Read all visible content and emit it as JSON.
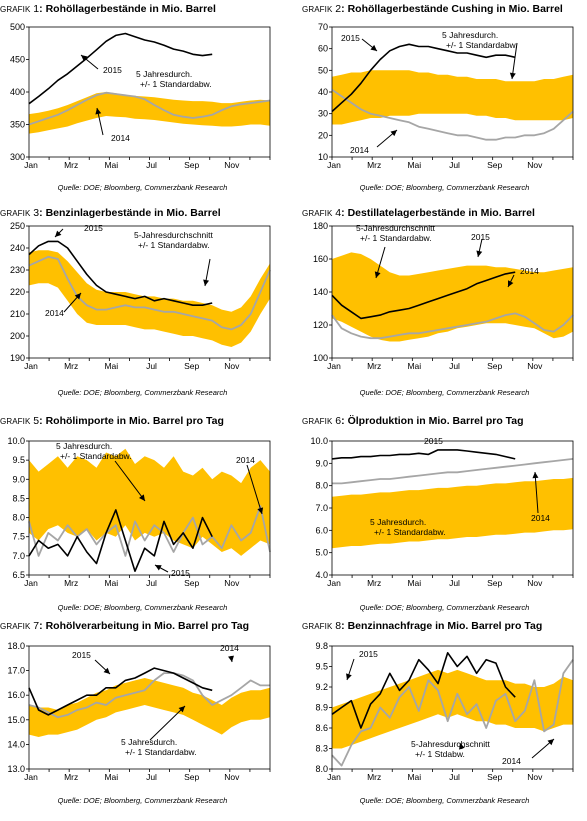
{
  "colors": {
    "band": "#FFC000",
    "series2015": "#000000",
    "series2014": "#A6A6A6",
    "frame": "#000000"
  },
  "source_text": "Quelle: DOE; Bloomberg, Commerzbank Research",
  "panels": [
    {
      "prefix": "GRAFIK",
      "number": "1",
      "title": ": Rohöllagerbestände in Mio. Barrel"
    },
    {
      "prefix": "GRAFIK",
      "number": "2",
      "title": ": Rohöllagerbestände Cushing in Mio. Barrel"
    },
    {
      "prefix": "GRAFIK",
      "number": "3",
      "title": ": Benzinlagerbestände in Mio. Barrel"
    },
    {
      "prefix": "GRAFIK",
      "number": "4",
      "title": ": Destillatelagerbestände in Mio. Barrel"
    },
    {
      "prefix": "GRAFIK",
      "number": "5",
      "title": ": Rohölimporte in Mio. Barrel pro Tag"
    },
    {
      "prefix": "GRAFIK",
      "number": "6",
      "title": ": Ölproduktion in Mio. Barrel pro Tag"
    },
    {
      "prefix": "GRAFIK",
      "number": "7",
      "title": ": Rohölverarbeitung in Mio. Barrel pro Tag"
    },
    {
      "prefix": "GRAFIK",
      "number": "8",
      "title": ": Benzinnachfrage in Mio. Barrel pro Tag"
    }
  ],
  "chart_data": [
    {
      "type": "area",
      "x_tick_labels": [
        "Jan",
        "Mrz",
        "Mai",
        "Jul",
        "Sep",
        "Nov"
      ],
      "ylim": [
        300,
        500
      ],
      "yticks": [
        "300",
        "350",
        "400",
        "450",
        "500"
      ],
      "annotations": [
        "2015",
        "5 Jahresdurch. +/- 1 Standardabw.",
        "2014"
      ],
      "band_upper": [
        366,
        368,
        371,
        375,
        380,
        386,
        392,
        398,
        400,
        398,
        395,
        394,
        393,
        392,
        390,
        388,
        387,
        386,
        386,
        385,
        383,
        383,
        385,
        387,
        388,
        387
      ],
      "band_lower": [
        336,
        338,
        341,
        344,
        347,
        352,
        356,
        360,
        363,
        362,
        361,
        359,
        358,
        357,
        355,
        353,
        351,
        350,
        349,
        348,
        347,
        347,
        348,
        350,
        350,
        348
      ],
      "series": [
        {
          "name": "2015",
          "values": [
            382,
            393,
            405,
            418,
            428,
            440,
            452,
            465,
            478,
            487,
            490,
            485,
            480,
            477,
            472,
            466,
            463,
            458,
            456,
            458
          ]
        },
        {
          "name": "2014",
          "values": [
            350,
            355,
            360,
            365,
            372,
            380,
            388,
            395,
            399,
            397,
            395,
            393,
            389,
            380,
            372,
            365,
            362,
            360,
            362,
            365,
            372,
            378,
            381,
            383,
            385,
            387
          ]
        }
      ]
    },
    {
      "type": "area",
      "x_tick_labels": [
        "Jan",
        "Mrz",
        "Mai",
        "Jul",
        "Sep",
        "Nov"
      ],
      "ylim": [
        10,
        70
      ],
      "yticks": [
        "10",
        "20",
        "30",
        "40",
        "50",
        "60",
        "70"
      ],
      "annotations": [
        "2015",
        "5 Jahresdurch. +/- 1 Standardabw.",
        "2014"
      ],
      "band_upper": [
        47,
        48,
        49,
        49,
        50,
        50,
        50,
        50,
        50,
        49,
        49,
        48,
        48,
        47,
        47,
        46,
        46,
        46,
        45,
        45,
        45,
        45,
        46,
        46,
        47,
        48
      ],
      "band_lower": [
        25,
        25,
        26,
        27,
        28,
        28,
        29,
        29,
        29,
        30,
        30,
        30,
        30,
        30,
        30,
        29,
        29,
        28,
        28,
        27,
        27,
        27,
        27,
        27,
        27,
        28
      ],
      "series": [
        {
          "name": "2015",
          "values": [
            31,
            35,
            39,
            44,
            50,
            55,
            59,
            61,
            62,
            61,
            61,
            60,
            59,
            58,
            58,
            57,
            56,
            57,
            57,
            56
          ]
        },
        {
          "name": "2014",
          "values": [
            41,
            38,
            35,
            32,
            30,
            29,
            28,
            27,
            26,
            24,
            23,
            22,
            21,
            20,
            20,
            19,
            18,
            18,
            19,
            19,
            20,
            20,
            21,
            23,
            27,
            31
          ]
        }
      ]
    },
    {
      "type": "area",
      "x_tick_labels": [
        "Jan",
        "Mrz",
        "Mai",
        "Jul",
        "Sep",
        "Nov"
      ],
      "ylim": [
        190,
        250
      ],
      "yticks": [
        "190",
        "200",
        "210",
        "220",
        "230",
        "240",
        "250"
      ],
      "annotations": [
        "2015",
        "5-Jahresdurchschnitt +/- 1 Standardabw.",
        "2014"
      ],
      "band_upper": [
        238,
        239,
        239,
        238,
        234,
        229,
        224,
        221,
        220,
        220,
        220,
        219,
        218,
        218,
        217,
        217,
        216,
        216,
        215,
        214,
        212,
        211,
        213,
        218,
        226,
        233
      ],
      "band_lower": [
        223,
        224,
        224,
        222,
        216,
        210,
        206,
        205,
        205,
        205,
        205,
        204,
        203,
        203,
        202,
        201,
        200,
        200,
        199,
        198,
        196,
        195,
        197,
        202,
        210,
        217
      ],
      "series": [
        {
          "name": "2015",
          "values": [
            237,
            241,
            243,
            243,
            240,
            234,
            228,
            223,
            220,
            219,
            218,
            217,
            218,
            216,
            217,
            216,
            215,
            214,
            214,
            215
          ]
        },
        {
          "name": "2014",
          "values": [
            232,
            234,
            236,
            235,
            226,
            218,
            214,
            212,
            212,
            213,
            214,
            213,
            213,
            212,
            211,
            211,
            210,
            209,
            208,
            207,
            204,
            203,
            205,
            210,
            220,
            230
          ]
        }
      ]
    },
    {
      "type": "area",
      "x_tick_labels": [
        "Jan",
        "Mrz",
        "Mai",
        "Jul",
        "Sep",
        "Nov"
      ],
      "ylim": [
        100,
        180
      ],
      "yticks": [
        "100",
        "120",
        "140",
        "160",
        "180"
      ],
      "annotations": [
        "5-Jahresdurchschnitt +/- 1 Standardabw.",
        "2015",
        "2014"
      ],
      "band_upper": [
        160,
        162,
        164,
        163,
        160,
        156,
        152,
        150,
        150,
        151,
        152,
        153,
        154,
        155,
        156,
        156,
        156,
        155,
        155,
        154,
        153,
        152,
        152,
        153,
        154,
        155
      ],
      "band_lower": [
        124,
        122,
        119,
        116,
        113,
        111,
        110,
        110,
        111,
        112,
        113,
        115,
        116,
        118,
        119,
        120,
        121,
        121,
        121,
        120,
        119,
        118,
        115,
        112,
        113,
        116
      ],
      "series": [
        {
          "name": "2015",
          "values": [
            138,
            132,
            128,
            124,
            125,
            126,
            128,
            129,
            130,
            132,
            134,
            136,
            138,
            140,
            142,
            145,
            147,
            149,
            151,
            152
          ]
        },
        {
          "name": "2014",
          "values": [
            126,
            118,
            115,
            113,
            112,
            112,
            113,
            114,
            115,
            115,
            116,
            117,
            118,
            119,
            120,
            121,
            122,
            124,
            126,
            127,
            125,
            121,
            117,
            116,
            120,
            126
          ]
        }
      ]
    },
    {
      "type": "area",
      "x_tick_labels": [
        "Jan",
        "Mrz",
        "Mai",
        "Jul",
        "Sep",
        "Nov"
      ],
      "ylim": [
        6.5,
        10.0
      ],
      "yticks": [
        "6.5",
        "7.0",
        "7.5",
        "8.0",
        "8.5",
        "9.0",
        "9.5",
        "10.0"
      ],
      "annotations": [
        "5 Jahresdurch. +/- 1 Standardabw.",
        "2014",
        "2015"
      ],
      "band_upper": [
        9.5,
        9.2,
        9.4,
        9.6,
        9.3,
        9.6,
        9.5,
        9.3,
        9.7,
        9.6,
        9.8,
        9.4,
        9.6,
        9.5,
        9.3,
        9.6,
        9.2,
        9.1,
        9.3,
        9.0,
        9.2,
        9.1,
        8.9,
        9.3,
        9.5,
        9.2
      ],
      "band_lower": [
        7.6,
        7.4,
        7.7,
        7.8,
        7.6,
        7.5,
        7.7,
        7.4,
        7.6,
        7.5,
        7.8,
        7.4,
        7.6,
        7.5,
        7.6,
        7.4,
        7.3,
        7.2,
        7.5,
        7.3,
        7.1,
        7.2,
        7.0,
        7.2,
        7.4,
        7.3
      ],
      "series": [
        {
          "name": "2015",
          "values": [
            7.0,
            7.4,
            7.2,
            7.3,
            7.0,
            7.5,
            7.1,
            6.8,
            7.6,
            8.2,
            7.4,
            6.6,
            7.2,
            7.0,
            7.9,
            7.3,
            7.6,
            7.2,
            8.0,
            7.5
          ]
        },
        {
          "name": "2014",
          "values": [
            7.9,
            7.0,
            7.6,
            7.4,
            7.8,
            7.5,
            7.7,
            7.3,
            7.6,
            7.8,
            7.0,
            7.9,
            7.4,
            7.8,
            7.6,
            7.1,
            7.6,
            8.0,
            7.3,
            7.5,
            7.2,
            7.8,
            7.4,
            7.6,
            8.3,
            7.1
          ]
        }
      ]
    },
    {
      "type": "area",
      "x_tick_labels": [
        "Jan",
        "Mrz",
        "Mai",
        "Jul",
        "Sep",
        "Nov"
      ],
      "ylim": [
        4.0,
        10.0
      ],
      "yticks": [
        "4.0",
        "5.0",
        "6.0",
        "7.0",
        "8.0",
        "9.0",
        "10.0"
      ],
      "annotations": [
        "2015",
        "5 Jahresdurch. +/- 1 Standardabw.",
        "2014"
      ],
      "band_upper": [
        7.5,
        7.55,
        7.6,
        7.6,
        7.65,
        7.7,
        7.7,
        7.75,
        7.8,
        7.8,
        7.85,
        7.9,
        7.9,
        7.95,
        8.0,
        8.0,
        8.05,
        8.1,
        8.1,
        8.15,
        8.2,
        8.2,
        8.25,
        8.3,
        8.3,
        8.35
      ],
      "band_lower": [
        5.2,
        5.25,
        5.3,
        5.3,
        5.35,
        5.4,
        5.4,
        5.45,
        5.5,
        5.5,
        5.55,
        5.6,
        5.6,
        5.65,
        5.7,
        5.7,
        5.75,
        5.8,
        5.8,
        5.85,
        5.9,
        5.9,
        5.95,
        6.0,
        6.0,
        6.05
      ],
      "series": [
        {
          "name": "2015",
          "values": [
            9.2,
            9.25,
            9.25,
            9.3,
            9.3,
            9.35,
            9.35,
            9.4,
            9.4,
            9.45,
            9.4,
            9.6,
            9.6,
            9.6,
            9.55,
            9.5,
            9.45,
            9.4,
            9.3,
            9.2
          ]
        },
        {
          "name": "2014",
          "values": [
            8.1,
            8.1,
            8.15,
            8.2,
            8.25,
            8.3,
            8.3,
            8.35,
            8.4,
            8.45,
            8.5,
            8.55,
            8.6,
            8.6,
            8.65,
            8.7,
            8.75,
            8.8,
            8.85,
            8.9,
            8.95,
            9.0,
            9.05,
            9.1,
            9.15,
            9.2
          ]
        }
      ]
    },
    {
      "type": "area",
      "x_tick_labels": [
        "Jan",
        "Mrz",
        "Mai",
        "Jul",
        "Sep",
        "Nov"
      ],
      "ylim": [
        13.0,
        18.0
      ],
      "yticks": [
        "13.0",
        "14.0",
        "15.0",
        "16.0",
        "17.0",
        "18.0"
      ],
      "annotations": [
        "2015",
        "5 Jahresdurch. +/- 1 Standardabw.",
        "2014"
      ],
      "band_upper": [
        15.6,
        15.5,
        15.5,
        15.4,
        15.6,
        15.7,
        15.9,
        16.1,
        16.2,
        16.4,
        16.5,
        16.6,
        16.7,
        16.6,
        16.5,
        16.4,
        16.3,
        16.1,
        16.0,
        15.8,
        15.6,
        15.9,
        16.1,
        16.2,
        16.2,
        16.3
      ],
      "band_lower": [
        14.4,
        14.3,
        14.4,
        14.4,
        14.5,
        14.6,
        14.8,
        15.0,
        15.1,
        15.3,
        15.4,
        15.5,
        15.6,
        15.5,
        15.4,
        15.3,
        15.2,
        15.0,
        14.8,
        14.6,
        14.4,
        14.7,
        14.9,
        15.0,
        15.0,
        15.1
      ],
      "series": [
        {
          "name": "2015",
          "values": [
            16.3,
            15.4,
            15.2,
            15.4,
            15.6,
            15.8,
            16.0,
            16.0,
            16.3,
            16.3,
            16.6,
            16.7,
            16.9,
            17.1,
            17.0,
            16.9,
            16.7,
            16.5,
            16.3,
            16.2
          ]
        },
        {
          "name": "2014",
          "values": [
            15.6,
            15.5,
            15.3,
            15.1,
            15.2,
            15.4,
            15.5,
            15.7,
            15.6,
            15.9,
            16.0,
            16.1,
            16.2,
            16.6,
            16.9,
            16.9,
            16.8,
            16.6,
            16.0,
            15.6,
            15.8,
            16.0,
            16.3,
            16.6,
            16.4,
            16.4
          ]
        }
      ]
    },
    {
      "type": "area",
      "x_tick_labels": [
        "Jan",
        "Mrz",
        "Mai",
        "Jul",
        "Sep",
        "Nov"
      ],
      "ylim": [
        8.0,
        9.8
      ],
      "yticks": [
        "8.0",
        "8.3",
        "8.6",
        "8.9",
        "9.2",
        "9.5",
        "9.8"
      ],
      "annotations": [
        "2015",
        "5-Jahresdurchschnitt +/- 1 Stdabw.",
        "2014"
      ],
      "band_upper": [
        8.9,
        8.95,
        9.0,
        9.05,
        9.1,
        9.15,
        9.2,
        9.25,
        9.3,
        9.35,
        9.4,
        9.45,
        9.4,
        9.45,
        9.4,
        9.35,
        9.3,
        9.3,
        9.3,
        9.25,
        9.25,
        9.2,
        9.2,
        9.25,
        9.35,
        9.3
      ],
      "band_lower": [
        8.3,
        8.3,
        8.35,
        8.4,
        8.45,
        8.5,
        8.55,
        8.6,
        8.65,
        8.7,
        8.75,
        8.8,
        8.75,
        8.8,
        8.75,
        8.7,
        8.7,
        8.65,
        8.65,
        8.6,
        8.6,
        8.6,
        8.55,
        8.6,
        8.65,
        8.65
      ],
      "series": [
        {
          "name": "2015",
          "values": [
            8.8,
            8.9,
            9.0,
            8.6,
            8.95,
            9.1,
            9.4,
            9.15,
            9.3,
            9.6,
            9.45,
            9.25,
            9.7,
            9.5,
            9.65,
            9.4,
            9.6,
            9.55,
            9.2,
            9.05
          ]
        },
        {
          "name": "2014",
          "values": [
            8.2,
            8.05,
            8.35,
            8.55,
            8.6,
            8.9,
            8.75,
            9.05,
            9.2,
            8.85,
            9.3,
            9.15,
            8.7,
            9.1,
            8.8,
            8.95,
            8.6,
            9.0,
            9.1,
            8.7,
            8.85,
            9.3,
            8.55,
            8.65,
            9.4,
            9.6
          ]
        }
      ]
    }
  ]
}
